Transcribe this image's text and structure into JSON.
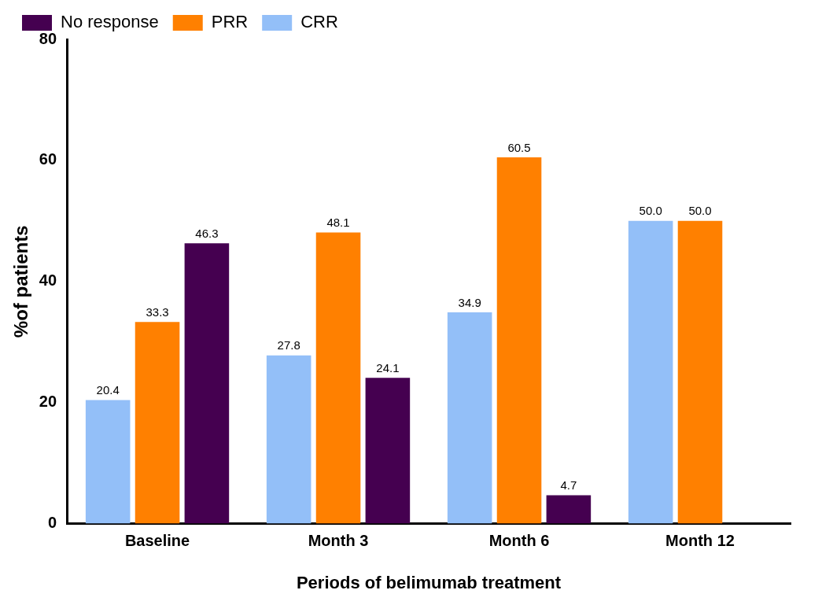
{
  "chart_data": {
    "type": "bar",
    "xlabel": "Periods of belimumab treatment",
    "ylabel": "%of patients",
    "categories": [
      "Baseline",
      "Month 3",
      "Month 6",
      "Month 12"
    ],
    "series": [
      {
        "name": "CRR",
        "color": "#93bff8",
        "values": [
          20.4,
          27.8,
          34.9,
          50.0
        ],
        "value_labels": [
          "20.4",
          "27.8",
          "34.9",
          "50.0"
        ]
      },
      {
        "name": "PRR",
        "color": "#ff8000",
        "values": [
          33.3,
          48.1,
          60.5,
          50.0
        ],
        "value_labels": [
          "33.3",
          "48.1",
          "60.5",
          "50.0"
        ]
      },
      {
        "name": "No response",
        "color": "#450050",
        "values": [
          46.3,
          24.1,
          4.7,
          null
        ],
        "value_labels": [
          "46.3",
          "24.1",
          "4.7",
          null
        ]
      }
    ],
    "ylim": [
      0,
      80
    ],
    "yticks": [
      0,
      20,
      40,
      60,
      80
    ],
    "grid": false,
    "legend": "top left"
  }
}
